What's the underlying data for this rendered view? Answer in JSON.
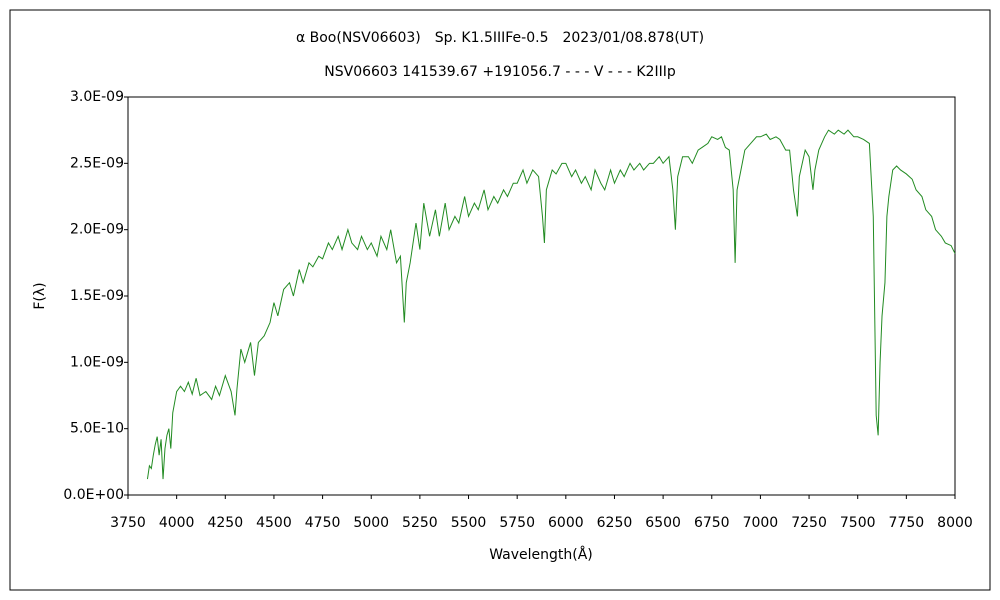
{
  "chart_data": {
    "type": "line",
    "title": "α Boo(NSV06603)　Sp. K1.5IIIFe-0.5　2023/01/08.878(UT)",
    "subtitle": "NSV06603 141539.67 +191056.7 - - - V - - - K2IIIp",
    "x_label": "Wavelength(Å)",
    "y_label": "F(λ)",
    "xlim": [
      3750,
      8000
    ],
    "xticks": [
      3750,
      4000,
      4250,
      4500,
      4750,
      5000,
      5250,
      5500,
      5750,
      6000,
      6250,
      6500,
      6750,
      7000,
      7250,
      7500,
      7750,
      8000
    ],
    "ylim": [
      0,
      3e-09
    ],
    "yticks": [
      {
        "value": 0,
        "label": "0.0E+00"
      },
      {
        "value": 5e-10,
        "label": "5.0E-10"
      },
      {
        "value": 1e-09,
        "label": "1.0E-09"
      },
      {
        "value": 1.5e-09,
        "label": "1.5E-09"
      },
      {
        "value": 2e-09,
        "label": "2.0E-09"
      },
      {
        "value": 2.5e-09,
        "label": "2.5E-09"
      },
      {
        "value": 3e-09,
        "label": "3.0E-09"
      }
    ],
    "grid": false,
    "color": "#228b22",
    "x": [
      3850,
      3860,
      3870,
      3880,
      3890,
      3900,
      3910,
      3920,
      3930,
      3940,
      3950,
      3960,
      3970,
      3980,
      4000,
      4020,
      4040,
      4060,
      4080,
      4100,
      4120,
      4150,
      4180,
      4200,
      4220,
      4250,
      4280,
      4300,
      4310,
      4330,
      4350,
      4380,
      4400,
      4420,
      4450,
      4480,
      4500,
      4520,
      4550,
      4580,
      4600,
      4630,
      4650,
      4680,
      4700,
      4730,
      4750,
      4780,
      4800,
      4830,
      4850,
      4880,
      4900,
      4930,
      4950,
      4980,
      5000,
      5030,
      5050,
      5080,
      5100,
      5130,
      5150,
      5170,
      5180,
      5200,
      5230,
      5250,
      5270,
      5300,
      5330,
      5350,
      5380,
      5400,
      5430,
      5450,
      5480,
      5500,
      5530,
      5550,
      5580,
      5600,
      5630,
      5650,
      5680,
      5700,
      5730,
      5750,
      5780,
      5800,
      5830,
      5860,
      5880,
      5890,
      5900,
      5930,
      5950,
      5980,
      6000,
      6030,
      6050,
      6080,
      6100,
      6130,
      6150,
      6180,
      6200,
      6230,
      6250,
      6280,
      6300,
      6330,
      6350,
      6380,
      6400,
      6430,
      6450,
      6480,
      6500,
      6530,
      6550,
      6563,
      6575,
      6600,
      6630,
      6650,
      6680,
      6700,
      6730,
      6750,
      6780,
      6800,
      6820,
      6840,
      6860,
      6870,
      6880,
      6900,
      6920,
      6950,
      6980,
      7000,
      7030,
      7050,
      7080,
      7100,
      7130,
      7150,
      7170,
      7190,
      7200,
      7230,
      7250,
      7270,
      7280,
      7300,
      7330,
      7350,
      7380,
      7400,
      7430,
      7450,
      7480,
      7500,
      7530,
      7560,
      7580,
      7595,
      7605,
      7615,
      7625,
      7640,
      7650,
      7660,
      7680,
      7700,
      7720,
      7750,
      7780,
      7800,
      7830,
      7850,
      7880,
      7900,
      7930,
      7950,
      7980,
      8000
    ],
    "values": [
      1.2e-10,
      2.2e-10,
      2e-10,
      3e-10,
      3.8e-10,
      4.4e-10,
      3e-10,
      4.2e-10,
      1.2e-10,
      3.5e-10,
      4.5e-10,
      5e-10,
      3.5e-10,
      6.2e-10,
      7.8e-10,
      8.2e-10,
      7.8e-10,
      8.5e-10,
      7.6e-10,
      8.8e-10,
      7.5e-10,
      7.8e-10,
      7.2e-10,
      8.2e-10,
      7.5e-10,
      9e-10,
      7.8e-10,
      6e-10,
      8e-10,
      1.1e-09,
      1e-09,
      1.15e-09,
      9e-10,
      1.15e-09,
      1.2e-09,
      1.3e-09,
      1.45e-09,
      1.35e-09,
      1.55e-09,
      1.6e-09,
      1.5e-09,
      1.7e-09,
      1.6e-09,
      1.75e-09,
      1.72e-09,
      1.8e-09,
      1.78e-09,
      1.9e-09,
      1.85e-09,
      1.95e-09,
      1.85e-09,
      2e-09,
      1.9e-09,
      1.85e-09,
      1.95e-09,
      1.85e-09,
      1.9e-09,
      1.8e-09,
      1.95e-09,
      1.85e-09,
      2e-09,
      1.75e-09,
      1.8e-09,
      1.3e-09,
      1.6e-09,
      1.75e-09,
      2.05e-09,
      1.85e-09,
      2.2e-09,
      1.95e-09,
      2.15e-09,
      1.95e-09,
      2.2e-09,
      2e-09,
      2.1e-09,
      2.05e-09,
      2.25e-09,
      2.1e-09,
      2.2e-09,
      2.15e-09,
      2.3e-09,
      2.15e-09,
      2.25e-09,
      2.2e-09,
      2.3e-09,
      2.25e-09,
      2.35e-09,
      2.35e-09,
      2.45e-09,
      2.35e-09,
      2.45e-09,
      2.4e-09,
      2.1e-09,
      1.9e-09,
      2.3e-09,
      2.45e-09,
      2.42e-09,
      2.5e-09,
      2.5e-09,
      2.4e-09,
      2.45e-09,
      2.35e-09,
      2.4e-09,
      2.3e-09,
      2.45e-09,
      2.35e-09,
      2.3e-09,
      2.45e-09,
      2.35e-09,
      2.45e-09,
      2.4e-09,
      2.5e-09,
      2.45e-09,
      2.5e-09,
      2.45e-09,
      2.5e-09,
      2.5e-09,
      2.55e-09,
      2.5e-09,
      2.55e-09,
      2.3e-09,
      2e-09,
      2.4e-09,
      2.55e-09,
      2.55e-09,
      2.5e-09,
      2.6e-09,
      2.62e-09,
      2.65e-09,
      2.7e-09,
      2.68e-09,
      2.7e-09,
      2.62e-09,
      2.6e-09,
      2.3e-09,
      1.75e-09,
      2.3e-09,
      2.45e-09,
      2.6e-09,
      2.65e-09,
      2.7e-09,
      2.7e-09,
      2.72e-09,
      2.68e-09,
      2.7e-09,
      2.68e-09,
      2.6e-09,
      2.6e-09,
      2.3e-09,
      2.1e-09,
      2.4e-09,
      2.6e-09,
      2.55e-09,
      2.3e-09,
      2.45e-09,
      2.6e-09,
      2.7e-09,
      2.75e-09,
      2.72e-09,
      2.75e-09,
      2.72e-09,
      2.75e-09,
      2.7e-09,
      2.7e-09,
      2.68e-09,
      2.65e-09,
      2.1e-09,
      6e-10,
      4.5e-10,
      1e-09,
      1.35e-09,
      1.6e-09,
      2.1e-09,
      2.25e-09,
      2.45e-09,
      2.48e-09,
      2.45e-09,
      2.42e-09,
      2.38e-09,
      2.3e-09,
      2.25e-09,
      2.15e-09,
      2.1e-09,
      2e-09,
      1.95e-09,
      1.9e-09,
      1.88e-09,
      1.82e-09
    ]
  }
}
